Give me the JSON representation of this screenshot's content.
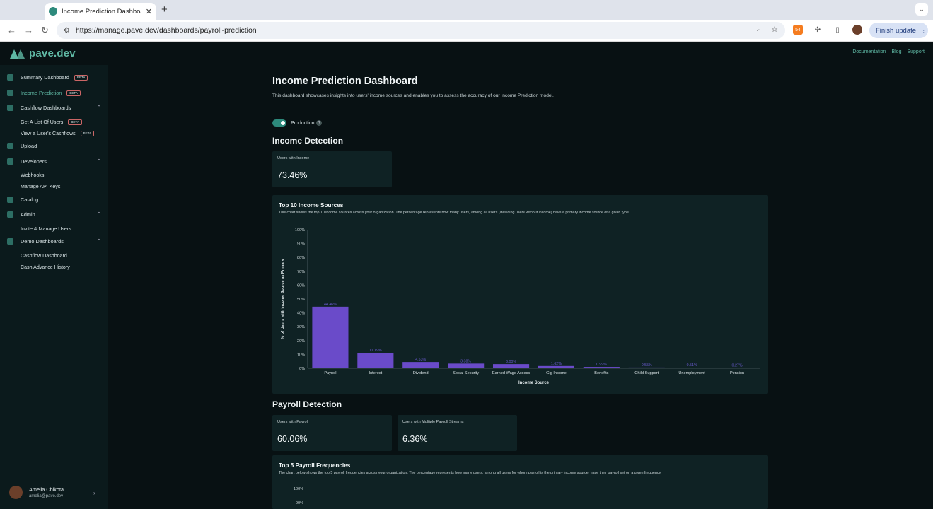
{
  "browser": {
    "tab_title": "Income Prediction Dashboard",
    "url": "https://manage.pave.dev/dashboards/payroll-prediction",
    "finish_update_label": "Finish update",
    "extension_badge": "54"
  },
  "app": {
    "logo_text": "pave.dev",
    "top_links": [
      "Documentation",
      "Blog",
      "Support"
    ]
  },
  "sidebar": {
    "beta_badge": "BETA",
    "items": {
      "summary": "Summary Dashboard",
      "income_prediction": "Income Prediction",
      "cashflow_dashboards": "Cashflow Dashboards",
      "get_users": "Get A List Of Users",
      "view_cashflows": "View a User's Cashflows",
      "upload": "Upload",
      "developers": "Developers",
      "webhooks": "Webhooks",
      "api_keys": "Manage API Keys",
      "catalog": "Catalog",
      "admin": "Admin",
      "invite": "Invite & Manage Users",
      "demo": "Demo Dashboards",
      "cashflow_dashboard": "Cashflow Dashboard",
      "cash_advance": "Cash Advance History"
    },
    "user": {
      "name": "Amelia Chikota",
      "email": "amelia@pave.dev"
    }
  },
  "main": {
    "title": "Income Prediction Dashboard",
    "description": "This dashboard showcases insights into users' income sources and enables you to assess the accuracy of our Income Prediction model.",
    "toggle_label": "Production",
    "toggle_on": true,
    "income_detection": {
      "title": "Income Detection",
      "card_label": "Users with Income",
      "card_value": "73.46%"
    },
    "chart1": {
      "title": "Top 10 Income Sources",
      "description": "This chart shows the top 10 income sources across your organization. The percentage represents how many users, among all users (including users without income) have a primary income source of a given type."
    },
    "payroll_detection": {
      "title": "Payroll Detection",
      "card1_label": "Users with Payroll",
      "card1_value": "60.06%",
      "card2_label": "Users with Multiple Payroll Streams",
      "card2_value": "6.36%"
    },
    "chart2": {
      "title": "Top 5 Payroll Frequencies",
      "description": "The chart below shows the top 5 payroll frequencies across your organization. The percentage represents how many users, among all users for whom payroll is the primary income source, have their payroll set on a given frequency.",
      "visible_ticks": [
        "100%",
        "90%"
      ]
    }
  },
  "colors": {
    "accent": "#5fb8a4",
    "bar": "#6a4bc9",
    "card_bg": "#0f2224"
  },
  "chart_data": [
    {
      "type": "bar",
      "title": "Top 10 Income Sources",
      "categories": [
        "Payroll",
        "Interest",
        "Dividend",
        "Social Security",
        "Earned Wage Access",
        "Gig Income",
        "Benefits",
        "Child Support",
        "Unemployment",
        "Pension"
      ],
      "values": [
        44.46,
        11.19,
        4.53,
        3.38,
        3.0,
        1.62,
        0.99,
        0.55,
        0.51,
        0.27
      ],
      "value_labels": [
        "44.46%",
        "11.19%",
        "4.53%",
        "3.38%",
        "3.00%",
        "1.62%",
        "0.99%",
        "0.55%",
        "0.51%",
        "0.27%"
      ],
      "xlabel": "Income Source",
      "ylabel": "% of Users with Income Source as Primary",
      "ylim": [
        0,
        100
      ],
      "yticks": [
        "0%",
        "10%",
        "20%",
        "30%",
        "40%",
        "50%",
        "60%",
        "70%",
        "80%",
        "90%",
        "100%"
      ]
    }
  ]
}
